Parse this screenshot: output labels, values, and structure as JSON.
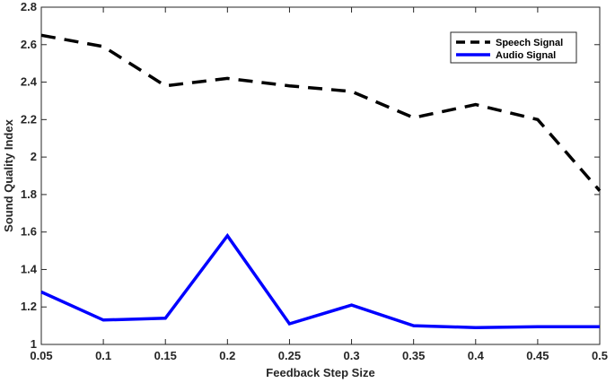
{
  "chart_data": {
    "type": "line",
    "title": "",
    "xlabel": "Feedback Step Size",
    "ylabel": "Sound Quality Index",
    "xlim": [
      0.05,
      0.5
    ],
    "ylim": [
      1,
      2.8
    ],
    "x_ticks": [
      "0.05",
      "0.1",
      "0.15",
      "0.2",
      "0.25",
      "0.3",
      "0.35",
      "0.4",
      "0.45",
      "0.5"
    ],
    "y_ticks": [
      "1",
      "1.2",
      "1.4",
      "1.6",
      "1.8",
      "2",
      "2.2",
      "2.4",
      "2.6",
      "2.8"
    ],
    "x": [
      0.05,
      0.1,
      0.15,
      0.2,
      0.25,
      0.3,
      0.35,
      0.4,
      0.45,
      0.5
    ],
    "grid": false,
    "legend_position": "top-right",
    "series": [
      {
        "name": "Speech Signal",
        "values": [
          2.65,
          2.59,
          2.38,
          2.42,
          2.38,
          2.35,
          2.21,
          2.28,
          2.2,
          1.82
        ],
        "color": "#000000",
        "style": "dashed"
      },
      {
        "name": "Audio Signal",
        "values": [
          1.28,
          1.13,
          1.14,
          1.58,
          1.11,
          1.21,
          1.1,
          1.09,
          1.095,
          1.095
        ],
        "color": "#0000ff",
        "style": "solid"
      }
    ]
  }
}
